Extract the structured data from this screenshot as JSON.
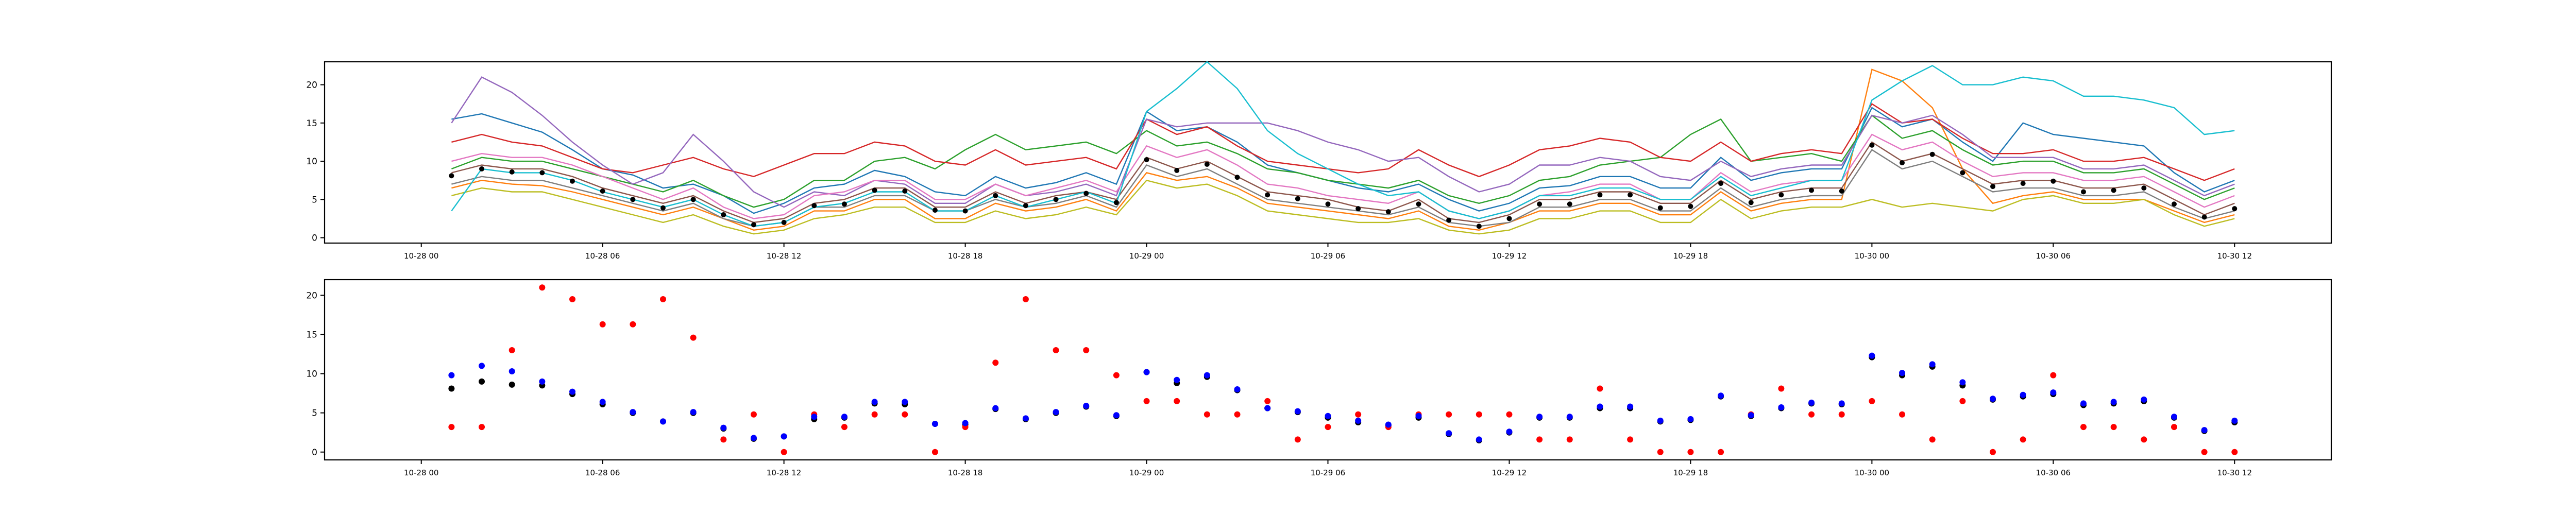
{
  "chart_data": [
    {
      "type": "line",
      "title": "",
      "xlabel": "",
      "ylabel": "",
      "x_tick_labels": [
        "10-28 00",
        "10-28 06",
        "10-28 12",
        "10-28 18",
        "10-29 00",
        "10-29 06",
        "10-29 12",
        "10-29 18",
        "10-30 00",
        "10-30 06",
        "10-30 12"
      ],
      "y_tick_labels": [
        "0",
        "5",
        "10",
        "15",
        "20"
      ],
      "xlim_hours": [
        -3.2,
        63.2
      ],
      "ylim": [
        -0.7,
        23.0
      ],
      "grid": false,
      "legend": "none",
      "x_hours": [
        1,
        2,
        3,
        4,
        5,
        6,
        7,
        8,
        9,
        10,
        11,
        12,
        13,
        14,
        15,
        16,
        17,
        18,
        19,
        20,
        21,
        22,
        23,
        24,
        25,
        26,
        27,
        28,
        29,
        30,
        31,
        32,
        33,
        34,
        35,
        36,
        37,
        38,
        39,
        40,
        41,
        42,
        43,
        44,
        45,
        46,
        47,
        48,
        49,
        50,
        51,
        52,
        53,
        54,
        55,
        56,
        57,
        58,
        59,
        60
      ],
      "mean_series": [
        8.1,
        9.0,
        8.6,
        8.5,
        7.4,
        6.1,
        5.0,
        3.9,
        5.0,
        3.0,
        1.7,
        2.0,
        4.2,
        4.4,
        6.2,
        6.1,
        3.6,
        3.5,
        5.5,
        4.2,
        5.0,
        5.8,
        4.6,
        10.2,
        8.8,
        9.6,
        7.9,
        5.6,
        5.1,
        4.4,
        3.8,
        3.4,
        4.4,
        2.3,
        1.5,
        2.5,
        4.4,
        4.4,
        5.6,
        5.6,
        3.9,
        4.1,
        7.1,
        4.6,
        5.6,
        6.2,
        6.1,
        12.1,
        9.8,
        10.9,
        8.5,
        6.7,
        7.1,
        7.4,
        6.0,
        6.2,
        6.5,
        4.4,
        2.7,
        3.8
      ],
      "series_colors": [
        "#1f77b4",
        "#ff7f0e",
        "#2ca02c",
        "#d62728",
        "#9467bd",
        "#8c564b",
        "#e377c2",
        "#7f7f7f",
        "#bcbd22",
        "#17becf"
      ],
      "series": [
        {
          "values": [
            15.5,
            16.2,
            15.0,
            13.8,
            11.5,
            9.0,
            8.2,
            6.5,
            7.0,
            5.5,
            3.2,
            4.5,
            6.5,
            7.0,
            8.8,
            8.0,
            6.0,
            5.5,
            8.0,
            6.5,
            7.2,
            8.5,
            7.0,
            16.5,
            14.0,
            14.5,
            12.5,
            9.5,
            8.5,
            7.5,
            6.5,
            6.0,
            7.0,
            5.0,
            3.5,
            4.5,
            6.5,
            6.8,
            8.0,
            8.0,
            6.5,
            6.5,
            10.5,
            7.5,
            8.5,
            9.0,
            9.0,
            17.0,
            14.5,
            15.5,
            12.5,
            10.0,
            15.0,
            13.5,
            13.0,
            12.5,
            12.0,
            8.5,
            6.0,
            7.5
          ]
        },
        {
          "values": [
            6.5,
            7.5,
            7.0,
            6.8,
            6.0,
            5.0,
            4.0,
            3.0,
            4.0,
            2.5,
            1.0,
            1.5,
            3.5,
            3.5,
            5.0,
            5.0,
            2.5,
            2.5,
            4.5,
            3.5,
            4.0,
            5.0,
            3.5,
            8.5,
            7.5,
            8.0,
            6.5,
            4.5,
            4.0,
            3.5,
            3.0,
            2.5,
            3.5,
            1.5,
            1.0,
            2.0,
            3.5,
            3.5,
            4.5,
            4.5,
            3.0,
            3.0,
            6.0,
            3.5,
            4.5,
            5.0,
            5.0,
            22.0,
            20.5,
            17.0,
            9.0,
            4.5,
            5.5,
            6.0,
            5.0,
            5.0,
            5.0,
            3.5,
            2.0,
            3.0
          ]
        },
        {
          "values": [
            9.0,
            10.5,
            10.0,
            10.0,
            9.0,
            8.0,
            7.0,
            6.0,
            7.5,
            5.5,
            4.0,
            5.0,
            7.5,
            7.5,
            10.0,
            10.5,
            9.0,
            11.5,
            13.5,
            11.5,
            12.0,
            12.5,
            11.0,
            14.0,
            12.0,
            12.5,
            11.0,
            9.0,
            8.5,
            7.5,
            7.0,
            6.5,
            7.5,
            5.5,
            4.5,
            5.5,
            7.5,
            8.0,
            9.5,
            10.0,
            10.5,
            13.5,
            15.5,
            10.0,
            10.5,
            11.0,
            10.0,
            16.0,
            13.0,
            14.0,
            11.5,
            9.5,
            10.0,
            10.0,
            8.5,
            8.5,
            9.0,
            7.0,
            5.0,
            6.5
          ]
        },
        {
          "values": [
            12.5,
            13.5,
            12.5,
            12.0,
            10.5,
            9.0,
            8.5,
            9.5,
            10.5,
            9.0,
            8.0,
            9.5,
            11.0,
            11.0,
            12.5,
            12.0,
            10.0,
            9.5,
            11.5,
            9.5,
            10.0,
            10.5,
            9.0,
            15.5,
            13.5,
            14.5,
            12.0,
            10.0,
            9.5,
            9.0,
            8.5,
            9.0,
            11.5,
            9.5,
            8.0,
            9.5,
            11.5,
            12.0,
            13.0,
            12.5,
            10.5,
            10.0,
            12.5,
            10.0,
            11.0,
            11.5,
            11.0,
            17.5,
            15.0,
            15.5,
            13.0,
            11.0,
            11.0,
            11.5,
            10.0,
            10.0,
            10.5,
            9.0,
            7.5,
            9.0
          ]
        },
        {
          "values": [
            15.0,
            21.0,
            19.0,
            16.0,
            12.5,
            9.5,
            7.0,
            8.5,
            13.5,
            10.0,
            6.0,
            4.0,
            6.0,
            5.5,
            7.5,
            7.0,
            4.5,
            4.5,
            7.0,
            5.5,
            6.0,
            7.0,
            5.5,
            15.5,
            14.5,
            15.0,
            15.0,
            15.0,
            14.0,
            12.5,
            11.5,
            10.0,
            10.5,
            8.0,
            6.0,
            7.0,
            9.5,
            9.5,
            10.5,
            10.0,
            8.0,
            7.5,
            10.0,
            8.0,
            9.0,
            9.5,
            9.5,
            16.0,
            15.0,
            16.0,
            13.5,
            10.5,
            10.5,
            10.5,
            9.0,
            9.0,
            9.5,
            7.5,
            5.5,
            7.0
          ]
        },
        {
          "values": [
            8.5,
            9.5,
            9.0,
            9.0,
            8.0,
            6.5,
            5.5,
            4.5,
            5.5,
            3.5,
            2.0,
            2.5,
            4.5,
            5.0,
            6.5,
            6.5,
            4.0,
            4.0,
            6.0,
            4.5,
            5.5,
            6.0,
            5.0,
            10.5,
            9.0,
            10.0,
            8.0,
            6.0,
            5.5,
            5.0,
            4.0,
            3.5,
            5.0,
            2.5,
            2.0,
            3.0,
            5.0,
            5.0,
            6.0,
            6.0,
            4.5,
            4.5,
            7.5,
            5.0,
            6.0,
            6.5,
            6.5,
            12.5,
            10.0,
            11.0,
            9.0,
            7.0,
            7.5,
            7.5,
            6.5,
            6.5,
            7.0,
            5.0,
            3.0,
            4.5
          ]
        },
        {
          "values": [
            10.0,
            11.0,
            10.5,
            10.5,
            9.5,
            8.0,
            6.5,
            5.0,
            6.5,
            4.0,
            2.5,
            3.0,
            5.5,
            6.0,
            7.5,
            7.5,
            5.0,
            5.0,
            7.0,
            5.5,
            6.5,
            7.5,
            6.0,
            12.0,
            10.5,
            11.5,
            9.5,
            7.0,
            6.5,
            5.5,
            5.0,
            4.5,
            6.0,
            3.5,
            2.5,
            3.5,
            5.5,
            6.0,
            7.0,
            7.0,
            5.0,
            5.0,
            8.5,
            6.0,
            7.0,
            7.5,
            7.5,
            13.5,
            11.5,
            12.5,
            10.0,
            8.0,
            8.5,
            8.5,
            7.5,
            7.5,
            8.0,
            6.0,
            4.0,
            5.5
          ]
        },
        {
          "values": [
            7.0,
            8.0,
            7.5,
            7.5,
            6.5,
            5.5,
            4.5,
            3.5,
            4.5,
            2.5,
            1.5,
            2.0,
            4.0,
            4.0,
            5.5,
            5.5,
            3.5,
            3.5,
            5.0,
            4.0,
            4.5,
            5.5,
            4.0,
            9.5,
            8.0,
            9.0,
            7.0,
            5.0,
            4.5,
            4.0,
            3.5,
            3.0,
            4.0,
            2.0,
            1.5,
            2.0,
            4.0,
            4.0,
            5.0,
            5.0,
            3.5,
            3.5,
            6.5,
            4.0,
            5.0,
            5.5,
            5.5,
            11.5,
            9.0,
            10.0,
            8.0,
            6.0,
            6.5,
            6.5,
            5.5,
            5.5,
            6.0,
            4.0,
            2.5,
            3.5
          ]
        },
        {
          "values": [
            5.5,
            6.5,
            6.0,
            6.0,
            5.0,
            4.0,
            3.0,
            2.0,
            3.0,
            1.5,
            0.5,
            1.0,
            2.5,
            3.0,
            4.0,
            4.0,
            2.0,
            2.0,
            3.5,
            2.5,
            3.0,
            4.0,
            3.0,
            7.5,
            6.5,
            7.0,
            5.5,
            3.5,
            3.0,
            2.5,
            2.0,
            2.0,
            2.5,
            1.0,
            0.5,
            1.0,
            2.5,
            2.5,
            3.5,
            3.5,
            2.0,
            2.0,
            5.0,
            2.5,
            3.5,
            4.0,
            4.0,
            5.0,
            4.0,
            4.5,
            4.0,
            3.5,
            5.0,
            5.5,
            4.5,
            4.5,
            5.0,
            3.0,
            1.5,
            2.5
          ]
        },
        {
          "values": [
            3.5,
            9.0,
            8.5,
            8.5,
            7.5,
            6.0,
            5.0,
            4.0,
            5.0,
            3.0,
            1.5,
            2.0,
            4.0,
            4.5,
            6.0,
            6.0,
            3.5,
            3.5,
            5.5,
            4.0,
            5.0,
            6.0,
            4.5,
            16.5,
            19.5,
            23.0,
            19.5,
            14.0,
            11.0,
            9.0,
            7.0,
            5.5,
            6.0,
            3.5,
            2.5,
            3.5,
            5.5,
            5.5,
            6.5,
            6.5,
            5.0,
            5.0,
            8.0,
            5.5,
            6.5,
            7.5,
            7.5,
            18.0,
            20.5,
            22.5,
            20.0,
            20.0,
            21.0,
            20.5,
            18.5,
            18.5,
            18.0,
            17.0,
            13.5,
            14.0
          ]
        }
      ]
    },
    {
      "type": "scatter",
      "title": "",
      "xlabel": "",
      "ylabel": "",
      "x_tick_labels": [
        "10-28 00",
        "10-28 06",
        "10-28 12",
        "10-28 18",
        "10-29 00",
        "10-29 06",
        "10-29 12",
        "10-29 18",
        "10-30 00",
        "10-30 06",
        "10-30 12"
      ],
      "y_tick_labels": [
        "0",
        "5",
        "10",
        "15",
        "20"
      ],
      "xlim_hours": [
        -3.2,
        63.2
      ],
      "ylim": [
        -1.0,
        22.0
      ],
      "grid": false,
      "legend": "none",
      "x_hours": [
        1,
        2,
        3,
        4,
        5,
        6,
        7,
        8,
        9,
        10,
        11,
        12,
        13,
        14,
        15,
        16,
        17,
        18,
        19,
        20,
        21,
        22,
        23,
        24,
        25,
        26,
        27,
        28,
        29,
        30,
        31,
        32,
        33,
        34,
        35,
        36,
        37,
        38,
        39,
        40,
        41,
        42,
        43,
        44,
        45,
        46,
        47,
        48,
        49,
        50,
        51,
        52,
        53,
        54,
        55,
        56,
        57,
        58,
        59,
        60
      ],
      "series": [
        {
          "color": "#000000",
          "values": [
            8.1,
            9.0,
            8.6,
            8.5,
            7.4,
            6.1,
            5.0,
            3.9,
            5.0,
            3.0,
            1.7,
            2.0,
            4.2,
            4.4,
            6.2,
            6.1,
            3.6,
            3.5,
            5.5,
            4.2,
            5.0,
            5.8,
            4.6,
            10.2,
            8.8,
            9.6,
            7.9,
            5.6,
            5.1,
            4.4,
            3.8,
            3.4,
            4.4,
            2.3,
            1.5,
            2.5,
            4.4,
            4.4,
            5.6,
            5.6,
            3.9,
            4.1,
            7.1,
            4.6,
            5.6,
            6.2,
            6.1,
            12.1,
            9.8,
            10.9,
            8.5,
            6.7,
            7.1,
            7.4,
            6.0,
            6.2,
            6.5,
            4.4,
            2.7,
            3.8
          ]
        },
        {
          "color": "#ff0000",
          "values": [
            3.2,
            3.2,
            13.0,
            21.0,
            19.5,
            16.3,
            16.3,
            19.5,
            14.6,
            1.6,
            4.8,
            0.0,
            4.8,
            3.2,
            4.8,
            4.8,
            0.0,
            3.2,
            11.4,
            19.5,
            13.0,
            13.0,
            9.8,
            6.5,
            6.5,
            4.8,
            4.8,
            6.5,
            1.6,
            3.2,
            4.8,
            3.2,
            4.8,
            4.8,
            4.8,
            4.8,
            1.6,
            1.6,
            8.1,
            1.6,
            0.0,
            0.0,
            0.0,
            4.8,
            8.1,
            4.8,
            4.8,
            6.5,
            4.8,
            1.6,
            6.5,
            0.0,
            1.6,
            9.8,
            3.2,
            3.2,
            1.6,
            3.2,
            0.0,
            0.0
          ]
        },
        {
          "color": "#0000ff",
          "values": [
            9.8,
            11.0,
            10.3,
            9.0,
            7.7,
            6.4,
            5.1,
            3.9,
            5.1,
            3.1,
            1.8,
            2.0,
            4.5,
            4.5,
            6.4,
            6.4,
            3.6,
            3.7,
            5.6,
            4.3,
            5.1,
            5.9,
            4.7,
            10.2,
            9.2,
            9.8,
            8.0,
            5.6,
            5.2,
            4.6,
            4.0,
            3.5,
            4.6,
            2.4,
            1.6,
            2.6,
            4.5,
            4.5,
            5.8,
            5.8,
            4.0,
            4.2,
            7.2,
            4.7,
            5.7,
            6.3,
            6.2,
            12.3,
            10.1,
            11.2,
            8.9,
            6.8,
            7.3,
            7.6,
            6.2,
            6.4,
            6.7,
            4.5,
            2.8,
            4.0
          ]
        }
      ]
    }
  ]
}
